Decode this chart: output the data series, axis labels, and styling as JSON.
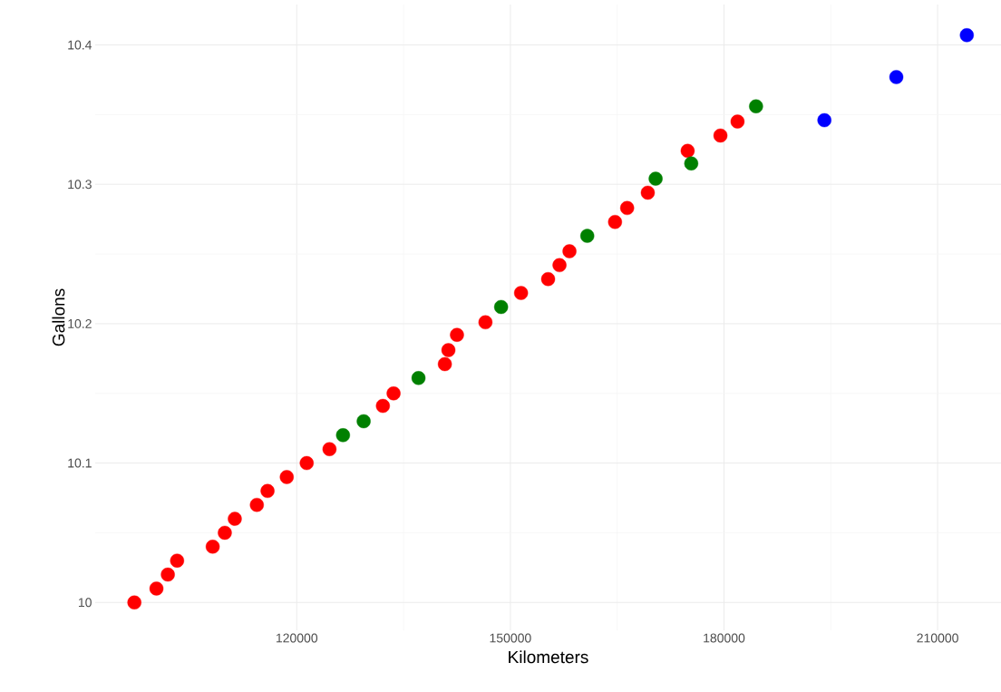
{
  "chart_data": {
    "type": "scatter",
    "xlabel": "Kilometers",
    "ylabel": "Gallons",
    "xlim": [
      91700,
      218900
    ],
    "ylim": [
      9.98,
      10.429
    ],
    "xticks": [
      120000,
      150000,
      180000,
      210000
    ],
    "yticks": [
      {
        "value": 10,
        "label": "10"
      },
      10.1,
      10.2,
      10.3,
      10.4
    ],
    "grid": true,
    "marker": "circle",
    "series": [
      {
        "color": "#ff0000",
        "x": [
          97200,
          100300,
          101900,
          103200,
          108200,
          109900,
          111300,
          114400,
          115900,
          118600,
          121400,
          124600,
          132100,
          133600,
          140800,
          141300,
          142500,
          146500,
          151500,
          155300,
          156900,
          158300,
          164700,
          166400,
          169300,
          174900,
          179500,
          181900
        ],
        "values": [
          10.0,
          10.01,
          10.02,
          10.03,
          10.04,
          10.05,
          10.06,
          10.07,
          10.08,
          10.09,
          10.1,
          10.11,
          10.141,
          10.15,
          10.171,
          10.181,
          10.192,
          10.201,
          10.222,
          10.232,
          10.242,
          10.252,
          10.273,
          10.283,
          10.294,
          10.324,
          10.335,
          10.345
        ]
      },
      {
        "color": "#008000",
        "x": [
          126500,
          129400,
          137100,
          148700,
          160800,
          170400,
          175400,
          184500
        ],
        "values": [
          10.12,
          10.13,
          10.161,
          10.212,
          10.263,
          10.304,
          10.315,
          10.356
        ]
      },
      {
        "color": "#0000ff",
        "x": [
          194100,
          204200,
          214100
        ],
        "values": [
          10.346,
          10.377,
          10.407
        ]
      }
    ]
  }
}
